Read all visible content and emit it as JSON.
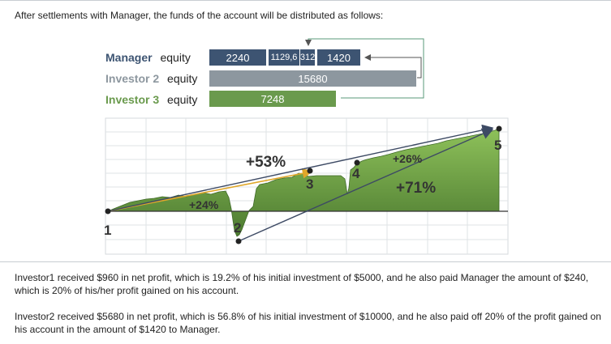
{
  "intro": "After settlements with Manager, the funds of the account will be distributed as follows:",
  "rows": [
    {
      "name": "Manager",
      "suffix": "equity",
      "color": "#3d5472"
    },
    {
      "name": "Investor 2",
      "suffix": "equity",
      "color": "#8d979f"
    },
    {
      "name": "Investor 3",
      "suffix": "equity",
      "color": "#6a9a4d"
    }
  ],
  "manager_segments": [
    "2240",
    "1129,6",
    "312",
    "1420"
  ],
  "investor2_value": "15680",
  "investor3_value": "7248",
  "chart": {
    "points": [
      "1",
      "2",
      "3",
      "4",
      "5"
    ],
    "labels": {
      "p24": "+24%",
      "p53": "+53%",
      "p26": "+26%",
      "p71": "+71%"
    }
  },
  "paragraphs": [
    "Investor1 received $960 in net profit, which is 19.2% of his initial investment of $5000, and he also paid Manager the amount of $240, which is 20% of his/her profit gained on his account.",
    "Investor2 received $5680 in net profit, which is 56.8% of his initial investment of $10000, and he also paid off 20% of the profit gained on his account in the amount of $1420 to Manager."
  ],
  "colors": {
    "manager": "#3d5472",
    "investor2": "#8d979f",
    "investor3": "#6a9a4d",
    "area": "#6a9a4d",
    "arrow_gold": "#e0a72a",
    "arrow_navy": "#3d4a64"
  }
}
